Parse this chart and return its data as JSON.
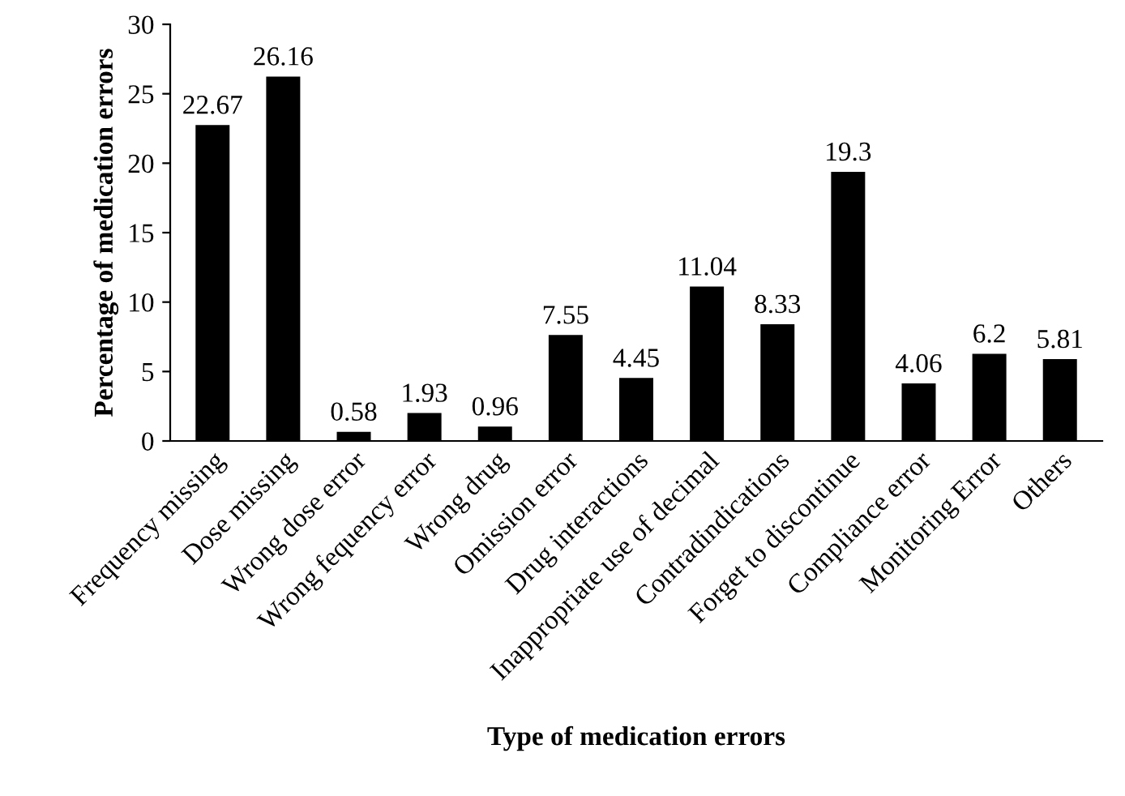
{
  "chart_data": {
    "type": "bar",
    "xlabel": "Type of medication errors",
    "ylabel": "Percentage of medication errors",
    "categories": [
      "Frequency missing",
      "Dose missing",
      "Wrong dose error",
      "Wrong fequency error",
      "Wrong drug",
      "Omission error",
      "Drug interactions",
      "Inappropriate use of decimal",
      "Contradindications",
      "Forget to discontinue",
      "Compliance error",
      "Monitoring Error",
      "Others"
    ],
    "values": [
      22.67,
      26.16,
      0.58,
      1.93,
      0.96,
      7.55,
      4.45,
      11.04,
      8.33,
      19.3,
      4.06,
      6.2,
      5.81
    ],
    "color": "#000000",
    "ylim": [
      0,
      30
    ],
    "yticks": [
      0,
      5,
      10,
      15,
      20,
      25,
      30
    ],
    "data_labels": true,
    "grid": false,
    "legend": false
  }
}
